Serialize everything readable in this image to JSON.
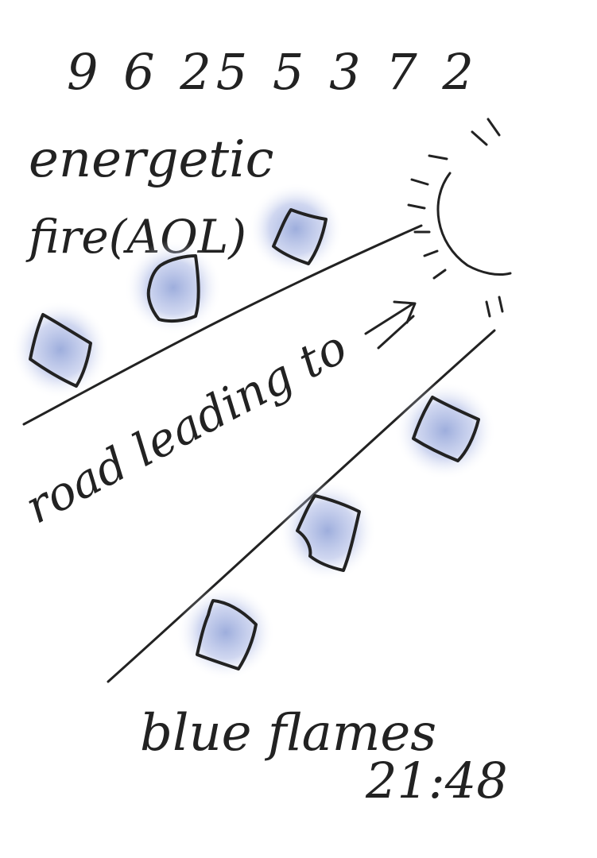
{
  "sketch": {
    "top_number": "9 6 25 5 3 7 2",
    "phrase_1_line_1": "energetic",
    "phrase_1_line_2": "fire(AOL)",
    "road_label": "road leading to",
    "bottom_label": "blue flames",
    "time": "21:48"
  },
  "colors": {
    "ink": "#222222",
    "lantern_fill": "#e4ea9a",
    "lantern_glow": "#8c9fd6",
    "background": "#ffffff"
  },
  "icons": {
    "sun": "sun-icon",
    "arrow": "arrow-icon",
    "lanterns": "lantern-icon"
  }
}
